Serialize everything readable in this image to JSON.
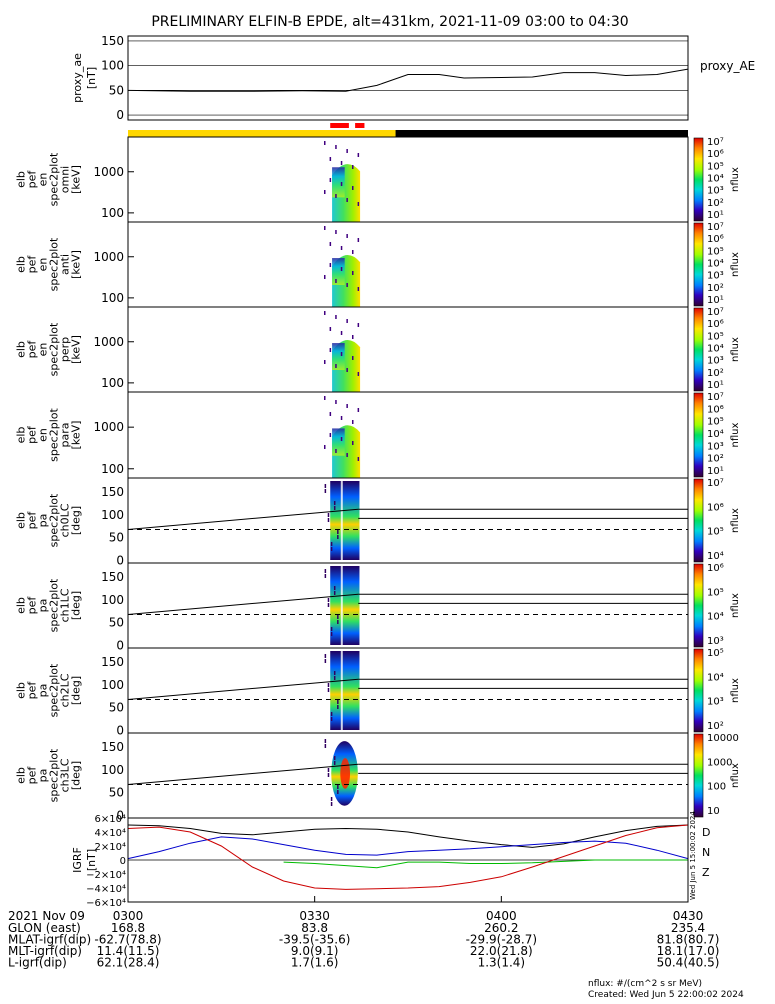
{
  "title": "PRELIMINARY ELFIN-B EPDE, alt=431km, 2021-11-09 03:00 to 04:30",
  "colors": {
    "line": "#000000",
    "bx": "#0000cc",
    "by": "#00bb00",
    "bz": "#cc0000",
    "state_yellow": "#ffd700",
    "state_black": "#000000",
    "state_red": "#ff0000"
  },
  "chart_data": [
    {
      "type": "line",
      "id": "proxy_ae",
      "ylabel": "proxy_ae\n[nT]",
      "legend": "proxy_AE",
      "ylim": [
        -10,
        160
      ],
      "yticks": [
        "150",
        "100",
        "50",
        "0"
      ],
      "x_minutes": [
        0,
        10,
        20,
        28,
        35,
        40,
        45,
        50,
        54,
        60,
        65,
        70,
        75,
        80,
        85,
        90
      ],
      "values": [
        50,
        48,
        48,
        49,
        48,
        60,
        82,
        82,
        75,
        76,
        77,
        86,
        86,
        80,
        82,
        93
      ]
    },
    {
      "type": "heatmap",
      "id": "omni",
      "ylabel": "elb\npef\nen\nspec2plot\nomni\n[keV]",
      "yticks": [
        "1000",
        "100"
      ],
      "cbar_ticks": [
        "10⁷",
        "10⁶",
        "10⁵",
        "10⁴",
        "10³",
        "10²",
        "10¹"
      ],
      "cbar_label": "nflux"
    },
    {
      "type": "heatmap",
      "id": "anti",
      "ylabel": "elb\npef\nen\nspec2plot\nanti\n[keV]",
      "yticks": [
        "1000",
        "100"
      ],
      "cbar_ticks": [
        "10⁷",
        "10⁶",
        "10⁵",
        "10⁴",
        "10³",
        "10²",
        "10¹"
      ],
      "cbar_label": "nflux"
    },
    {
      "type": "heatmap",
      "id": "perp",
      "ylabel": "elb\npef\nen\nspec2plot\nperp\n[keV]",
      "yticks": [
        "1000",
        "100"
      ],
      "cbar_ticks": [
        "10⁷",
        "10⁶",
        "10⁵",
        "10⁴",
        "10³",
        "10²",
        "10¹"
      ],
      "cbar_label": "nflux"
    },
    {
      "type": "heatmap",
      "id": "para",
      "ylabel": "elb\npef\nen\nspec2plot\npara\n[keV]",
      "yticks": [
        "1000",
        "100"
      ],
      "cbar_ticks": [
        "10⁷",
        "10⁶",
        "10⁵",
        "10⁴",
        "10³",
        "10²",
        "10¹"
      ],
      "cbar_label": "nflux"
    },
    {
      "type": "heatmap",
      "id": "ch0LC",
      "ylabel": "elb\npef\npa\nspec2plot\nch0LC\n[deg]",
      "yticks": [
        "150",
        "100",
        "50",
        "0"
      ],
      "cbar_ticks": [
        "10⁷",
        "10⁶",
        "10⁵",
        "10⁴"
      ],
      "cbar_label": "nflux"
    },
    {
      "type": "heatmap",
      "id": "ch1LC",
      "ylabel": "elb\npef\npa\nspec2plot\nch1LC\n[deg]",
      "yticks": [
        "150",
        "100",
        "50",
        "0"
      ],
      "cbar_ticks": [
        "10⁶",
        "10⁵",
        "10⁴",
        "10³"
      ],
      "cbar_label": "nflux"
    },
    {
      "type": "heatmap",
      "id": "ch2LC",
      "ylabel": "elb\npef\npa\nspec2plot\nch2LC\n[deg]",
      "yticks": [
        "150",
        "100",
        "50",
        "0"
      ],
      "cbar_ticks": [
        "10⁵",
        "10⁴",
        "10³",
        "10²"
      ],
      "cbar_label": "nflux"
    },
    {
      "type": "heatmap",
      "id": "ch3LC",
      "ylabel": "elb\npef\npa\nspec2plot\nch3LC\n[deg]",
      "yticks": [
        "150",
        "100",
        "50",
        "0"
      ],
      "cbar_ticks": [
        "10000",
        "1000",
        "100",
        "10"
      ],
      "cbar_label": "nflux"
    },
    {
      "type": "line",
      "id": "igrf",
      "ylabel": "IGRF\n[nT]",
      "yticks": [
        "6×10⁴",
        "4×10⁴",
        "2×10⁴",
        "0",
        "−2×10⁴",
        "−4×10⁴",
        "−6×10⁴"
      ],
      "ylim": [
        -60000,
        60000
      ],
      "legend": [
        "D",
        "N",
        "Z"
      ],
      "x_minutes": [
        0,
        5,
        10,
        15,
        20,
        25,
        30,
        35,
        40,
        45,
        50,
        55,
        60,
        65,
        70,
        75,
        80,
        85,
        90
      ],
      "series": [
        {
          "name": "total",
          "values": [
            50000,
            49000,
            45000,
            38000,
            36000,
            40000,
            44000,
            45000,
            44000,
            40000,
            33000,
            27000,
            22000,
            18000,
            23000,
            33000,
            42000,
            48000,
            50000
          ]
        },
        {
          "name": "bx",
          "values": [
            2000,
            12000,
            24000,
            33000,
            30000,
            22000,
            14000,
            8000,
            7000,
            12000,
            14000,
            16000,
            19000,
            22000,
            25000,
            27000,
            24000,
            14000,
            2000
          ]
        },
        {
          "name": "by",
          "values": [
            null,
            null,
            null,
            null,
            null,
            -3000,
            -5000,
            -8000,
            -11000,
            -3000,
            -3000,
            -5000,
            -5000,
            -4000,
            -2000,
            0,
            0,
            0,
            0
          ]
        },
        {
          "name": "bz",
          "values": [
            45000,
            47000,
            40000,
            20000,
            -10000,
            -30000,
            -40000,
            -42000,
            -41000,
            -40000,
            -38000,
            -32000,
            -24000,
            -10000,
            5000,
            20000,
            35000,
            46000,
            50000
          ]
        }
      ]
    }
  ],
  "state_bar": {
    "yellow_end_min": 43,
    "sci_red_1": [
      32.5,
      35.5
    ],
    "sci_red_2": [
      36.5,
      38
    ]
  },
  "x_axis": {
    "label": "2021 Nov 09",
    "ticks": [
      {
        "time": "0300",
        "min": 0
      },
      {
        "time": "0330",
        "min": 30
      },
      {
        "time": "0400",
        "min": 60
      },
      {
        "time": "0430",
        "min": 90
      }
    ]
  },
  "ephem": [
    {
      "label": "GLON (east)",
      "values": [
        "168.8",
        "83.8",
        "260.2",
        "235.4"
      ]
    },
    {
      "label": "MLAT-igrf(dip)",
      "values": [
        "-62.7(78.8)",
        "-39.5(-35.6)",
        "-29.9(-28.7)",
        "81.8(80.7)"
      ]
    },
    {
      "label": "MLT-igrf(dip)",
      "values": [
        "11.4(11.5)",
        "9.0(9.1)",
        "22.0(21.8)",
        "18.1(17.0)"
      ]
    },
    {
      "label": "L-igrf(dip)",
      "values": [
        "62.1(28.4)",
        "1.7(1.6)",
        "1.3(1.4)",
        "50.4(40.5)"
      ]
    }
  ],
  "footer": {
    "units": "nflux: #/(cm^2 s sr MeV)",
    "created": "Created: Wed Jun  5 22:00:02 2024",
    "stamp": "Wed Jun  5 15:00:02 2024"
  }
}
